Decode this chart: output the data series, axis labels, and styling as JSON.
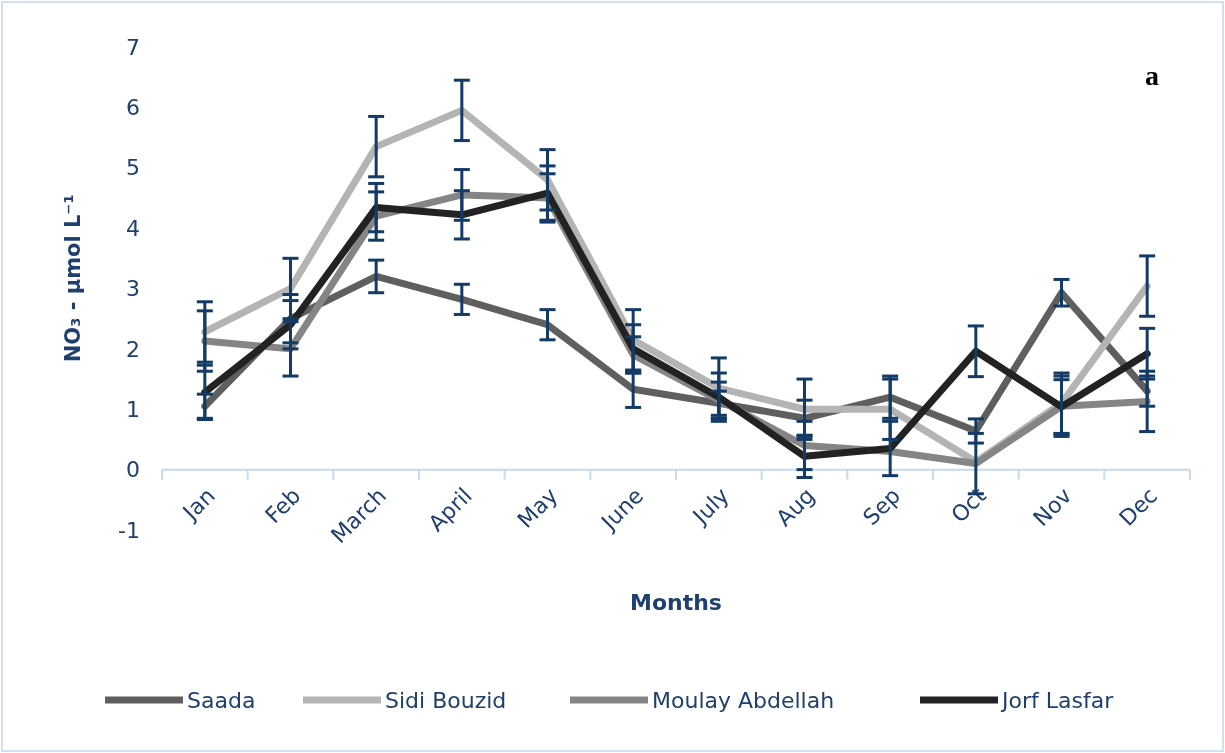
{
  "chart_data": {
    "type": "line",
    "xlabel": "Months",
    "ylabel": "NO₃ - µmol L⁻¹",
    "annotations": [
      "a"
    ],
    "categories": [
      "Jan",
      "Feb",
      "March",
      "April",
      "May",
      "June",
      "July",
      "Aug",
      "Sep",
      "Oct",
      "Nov",
      "Dec"
    ],
    "ylim": [
      -1,
      7
    ],
    "yticks": [
      -1,
      0,
      1,
      2,
      3,
      4,
      5,
      6,
      7
    ],
    "grid": false,
    "legend": "bottom",
    "line_style": "solid",
    "marker": "none",
    "series": [
      {
        "name": "Saada",
        "color": "#5f5f5f",
        "values": [
          1.05,
          2.5,
          3.2,
          2.82,
          2.4,
          1.33,
          1.1,
          0.85,
          1.2,
          0.64,
          2.93,
          1.3
        ],
        "errors": [
          0.2,
          0.4,
          0.27,
          0.25,
          0.25,
          0.3,
          0.2,
          0.3,
          0.35,
          0.2,
          0.22,
          0.25
        ]
      },
      {
        "name": "Sidi Bouzid",
        "color": "#b4b4b4",
        "values": [
          2.28,
          3.0,
          5.35,
          5.95,
          4.8,
          2.15,
          1.35,
          1.0,
          1.0,
          0.13,
          1.1,
          3.04
        ],
        "errors": [
          0.5,
          0.5,
          0.5,
          0.5,
          0.5,
          0.5,
          0.5,
          0.5,
          0.5,
          null,
          0.5,
          0.5
        ]
      },
      {
        "name": "Moulay Abdellah",
        "color": "#858585",
        "values": [
          2.13,
          2.0,
          4.2,
          4.55,
          4.5,
          1.9,
          1.15,
          0.4,
          0.3,
          0.1,
          1.05,
          1.13
        ],
        "errors": [
          0.5,
          0.45,
          0.4,
          0.42,
          0.4,
          0.3,
          0.3,
          0.4,
          null,
          0.5,
          0.5,
          0.5
        ]
      },
      {
        "name": "Jorf Lasfar",
        "color": "#222222",
        "values": [
          1.28,
          2.4,
          4.34,
          4.22,
          4.58,
          2.0,
          1.2,
          0.22,
          0.35,
          1.96,
          1.04,
          1.92
        ],
        "errors": [
          0.45,
          0.4,
          0.4,
          0.4,
          0.45,
          0.4,
          0.4,
          0.35,
          0.45,
          0.42,
          0.45,
          0.42
        ]
      }
    ]
  }
}
